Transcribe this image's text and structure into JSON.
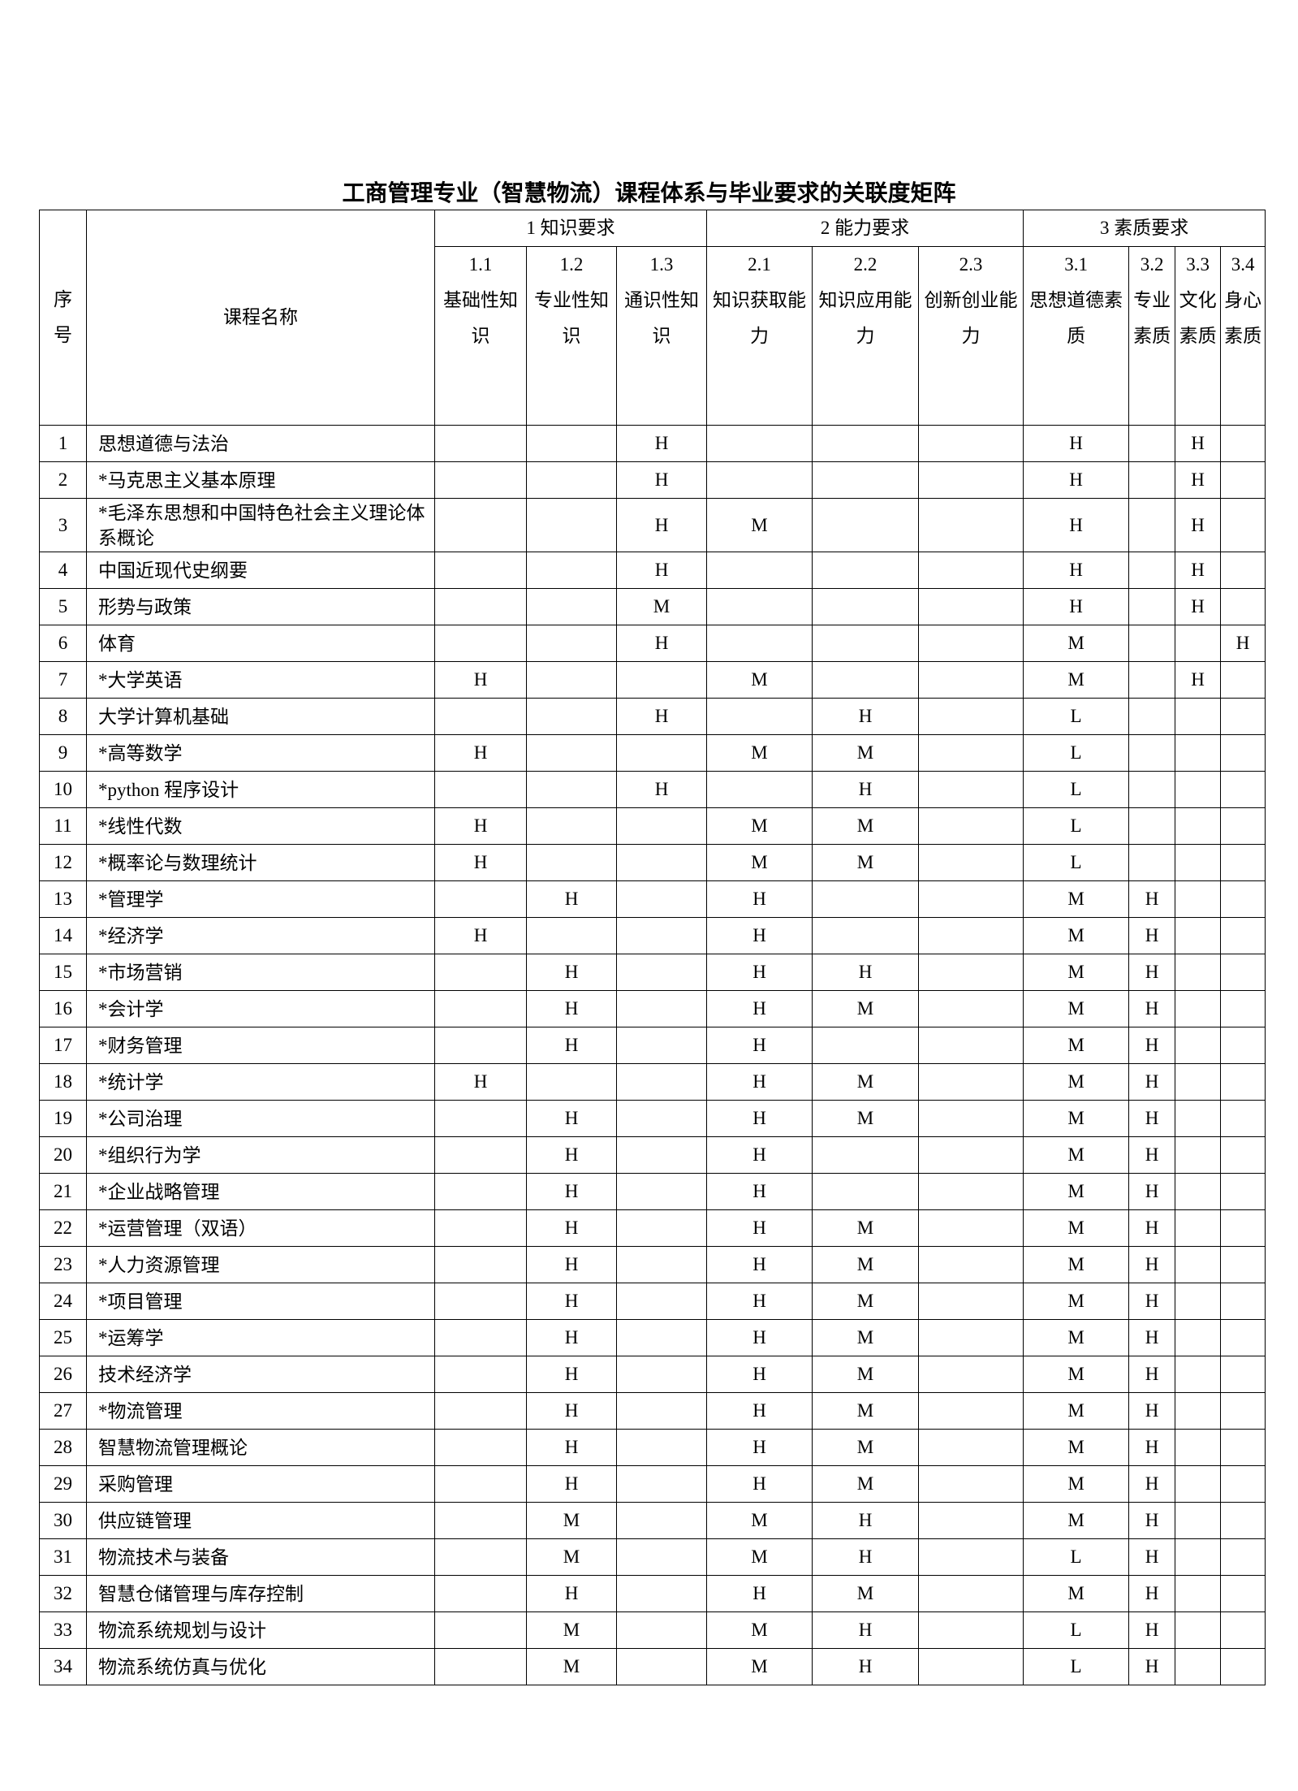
{
  "title": "工商管理专业（智慧物流）课程体系与毕业要求的关联度矩阵",
  "headers": {
    "seq": "序号",
    "course": "课程名称",
    "groups": [
      {
        "label": "1 知识要求",
        "span": 3
      },
      {
        "label": "2 能力要求",
        "span": 3
      },
      {
        "label": "3 素质要求",
        "span": 4
      }
    ],
    "subs": [
      {
        "num": "1.1",
        "label": "基础性知识"
      },
      {
        "num": "1.2",
        "label": "专业性知识"
      },
      {
        "num": "1.3",
        "label": "通识性知识"
      },
      {
        "num": "2.1",
        "label": "知识获取能力"
      },
      {
        "num": "2.2",
        "label": "知识应用能力"
      },
      {
        "num": "2.3",
        "label": "创新创业能力"
      },
      {
        "num": "3.1",
        "label": "思想道德素质"
      },
      {
        "num": "3.2",
        "label": "专业素质"
      },
      {
        "num": "3.3",
        "label": "文化素质"
      },
      {
        "num": "3.4",
        "label": "身心素质"
      }
    ]
  },
  "rows": [
    {
      "no": "1",
      "name": "思想道德与法治",
      "cells": [
        "",
        "",
        "H",
        "",
        "",
        "",
        "H",
        "",
        "H",
        ""
      ]
    },
    {
      "no": "2",
      "name": "*马克思主义基本原理",
      "cells": [
        "",
        "",
        "H",
        "",
        "",
        "",
        "H",
        "",
        "H",
        ""
      ]
    },
    {
      "no": "3",
      "name": "*毛泽东思想和中国特色社会主义理论体系概论",
      "cells": [
        "",
        "",
        "H",
        "M",
        "",
        "",
        "H",
        "",
        "H",
        ""
      ]
    },
    {
      "no": "4",
      "name": "中国近现代史纲要",
      "cells": [
        "",
        "",
        "H",
        "",
        "",
        "",
        "H",
        "",
        "H",
        ""
      ]
    },
    {
      "no": "5",
      "name": "形势与政策",
      "cells": [
        "",
        "",
        "M",
        "",
        "",
        "",
        "H",
        "",
        "H",
        ""
      ]
    },
    {
      "no": "6",
      "name": "体育",
      "cells": [
        "",
        "",
        "H",
        "",
        "",
        "",
        "M",
        "",
        "",
        "H"
      ]
    },
    {
      "no": "7",
      "name": "*大学英语",
      "cells": [
        "H",
        "",
        "",
        "M",
        "",
        "",
        "M",
        "",
        "H",
        ""
      ]
    },
    {
      "no": "8",
      "name": "大学计算机基础",
      "cells": [
        "",
        "",
        "H",
        "",
        "H",
        "",
        "L",
        "",
        "",
        ""
      ]
    },
    {
      "no": "9",
      "name": "*高等数学",
      "cells": [
        "H",
        "",
        "",
        "M",
        "M",
        "",
        "L",
        "",
        "",
        ""
      ]
    },
    {
      "no": "10",
      "name": "*python 程序设计",
      "cells": [
        "",
        "",
        "H",
        "",
        "H",
        "",
        "L",
        "",
        "",
        ""
      ]
    },
    {
      "no": "11",
      "name": "*线性代数",
      "cells": [
        "H",
        "",
        "",
        "M",
        "M",
        "",
        "L",
        "",
        "",
        ""
      ]
    },
    {
      "no": "12",
      "name": "*概率论与数理统计",
      "cells": [
        "H",
        "",
        "",
        "M",
        "M",
        "",
        "L",
        "",
        "",
        ""
      ]
    },
    {
      "no": "13",
      "name": "*管理学",
      "cells": [
        "",
        "H",
        "",
        "H",
        "",
        "",
        "M",
        "H",
        "",
        ""
      ]
    },
    {
      "no": "14",
      "name": "*经济学",
      "cells": [
        "H",
        "",
        "",
        "H",
        "",
        "",
        "M",
        "H",
        "",
        ""
      ]
    },
    {
      "no": "15",
      "name": "*市场营销",
      "cells": [
        "",
        "H",
        "",
        "H",
        "H",
        "",
        "M",
        "H",
        "",
        ""
      ]
    },
    {
      "no": "16",
      "name": "*会计学",
      "cells": [
        "",
        "H",
        "",
        "H",
        "M",
        "",
        "M",
        "H",
        "",
        ""
      ]
    },
    {
      "no": "17",
      "name": "*财务管理",
      "cells": [
        "",
        "H",
        "",
        "H",
        "",
        "",
        "M",
        "H",
        "",
        ""
      ]
    },
    {
      "no": "18",
      "name": "*统计学",
      "cells": [
        "H",
        "",
        "",
        "H",
        "M",
        "",
        "M",
        "H",
        "",
        ""
      ]
    },
    {
      "no": "19",
      "name": "*公司治理",
      "cells": [
        "",
        "H",
        "",
        "H",
        "M",
        "",
        "M",
        "H",
        "",
        ""
      ]
    },
    {
      "no": "20",
      "name": "*组织行为学",
      "cells": [
        "",
        "H",
        "",
        "H",
        "",
        "",
        "M",
        "H",
        "",
        ""
      ]
    },
    {
      "no": "21",
      "name": "*企业战略管理",
      "cells": [
        "",
        "H",
        "",
        "H",
        "",
        "",
        "M",
        "H",
        "",
        ""
      ]
    },
    {
      "no": "22",
      "name": "*运营管理（双语）",
      "cells": [
        "",
        "H",
        "",
        "H",
        "M",
        "",
        "M",
        "H",
        "",
        ""
      ]
    },
    {
      "no": "23",
      "name": "*人力资源管理",
      "cells": [
        "",
        "H",
        "",
        "H",
        "M",
        "",
        "M",
        "H",
        "",
        ""
      ]
    },
    {
      "no": "24",
      "name": "*项目管理",
      "cells": [
        "",
        "H",
        "",
        "H",
        "M",
        "",
        "M",
        "H",
        "",
        ""
      ]
    },
    {
      "no": "25",
      "name": "*运筹学",
      "cells": [
        "",
        "H",
        "",
        "H",
        "M",
        "",
        "M",
        "H",
        "",
        ""
      ]
    },
    {
      "no": "26",
      "name": "技术经济学",
      "cells": [
        "",
        "H",
        "",
        "H",
        "M",
        "",
        "M",
        "H",
        "",
        ""
      ]
    },
    {
      "no": "27",
      "name": "*物流管理",
      "cells": [
        "",
        "H",
        "",
        "H",
        "M",
        "",
        "M",
        "H",
        "",
        ""
      ]
    },
    {
      "no": "28",
      "name": "智慧物流管理概论",
      "cells": [
        "",
        "H",
        "",
        "H",
        "M",
        "",
        "M",
        "H",
        "",
        ""
      ]
    },
    {
      "no": "29",
      "name": "采购管理",
      "cells": [
        "",
        "H",
        "",
        "H",
        "M",
        "",
        "M",
        "H",
        "",
        ""
      ]
    },
    {
      "no": "30",
      "name": "供应链管理",
      "cells": [
        "",
        "M",
        "",
        "M",
        "H",
        "",
        "M",
        "H",
        "",
        ""
      ]
    },
    {
      "no": "31",
      "name": "物流技术与装备",
      "cells": [
        "",
        "M",
        "",
        "M",
        "H",
        "",
        "L",
        "H",
        "",
        ""
      ]
    },
    {
      "no": "32",
      "name": "智慧仓储管理与库存控制",
      "cells": [
        "",
        "H",
        "",
        "H",
        "M",
        "",
        "M",
        "H",
        "",
        ""
      ]
    },
    {
      "no": "33",
      "name": "物流系统规划与设计",
      "cells": [
        "",
        "M",
        "",
        "M",
        "H",
        "",
        "L",
        "H",
        "",
        ""
      ]
    },
    {
      "no": "34",
      "name": "物流系统仿真与优化",
      "cells": [
        "",
        "M",
        "",
        "M",
        "H",
        "",
        "L",
        "H",
        "",
        ""
      ]
    }
  ]
}
